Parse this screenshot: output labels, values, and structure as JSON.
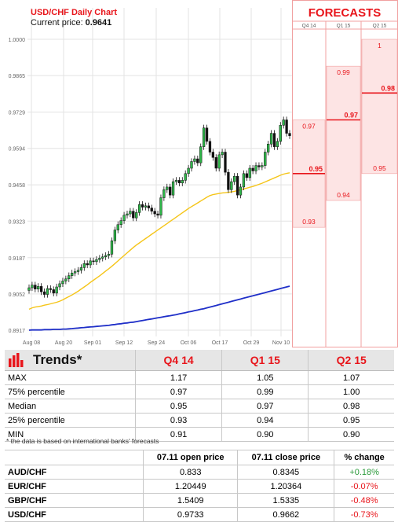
{
  "chart_data": {
    "type": "line",
    "title": "USD/CHF Daily Chart",
    "current_price_label": "Current price:",
    "current_price": "0.9641",
    "x_tick_labels": [
      "Aug 08",
      "Aug 20",
      "Sep 01",
      "Sep 12",
      "Sep 24",
      "Oct 06",
      "Oct 17",
      "Oct 29",
      "Nov 10"
    ],
    "y_ticks": [
      0.8917,
      0.9052,
      0.9187,
      0.9323,
      0.9458,
      0.9594,
      0.9729,
      0.9865,
      1.0
    ],
    "y_tick_labels": [
      "0.8917",
      "0.9052",
      "0.9187",
      "0.9323",
      "0.9458",
      "0.9594",
      "0.9729",
      "0.9865",
      "1.0000"
    ],
    "ylim": [
      0.8917,
      1.0
    ],
    "grid": true,
    "series": [
      {
        "values_close": [
          0.9075,
          0.9085,
          0.907,
          0.908,
          0.906,
          0.905,
          0.9072,
          0.9068,
          0.9055,
          0.9078,
          0.909,
          0.91,
          0.9108,
          0.912,
          0.913,
          0.9135,
          0.914,
          0.915,
          0.9165,
          0.916,
          0.9175,
          0.9172,
          0.918,
          0.9185,
          0.919,
          0.9195,
          0.92,
          0.925,
          0.929,
          0.931,
          0.9325,
          0.9345,
          0.935,
          0.936,
          0.9335,
          0.9355,
          0.9385,
          0.9375,
          0.938,
          0.9372,
          0.936,
          0.935,
          0.9345,
          0.941,
          0.944,
          0.945,
          0.942,
          0.947,
          0.9475,
          0.9465,
          0.9475,
          0.95,
          0.952,
          0.9545,
          0.9555,
          0.954,
          0.96,
          0.967,
          0.962,
          0.958,
          0.956,
          0.952,
          0.957,
          0.958,
          0.9505,
          0.944,
          0.947,
          0.949,
          0.942,
          0.945,
          0.95,
          0.9485,
          0.952,
          0.951,
          0.953,
          0.9525,
          0.953,
          0.958,
          0.961,
          0.965,
          0.96,
          0.962,
          0.968,
          0.97,
          0.965,
          0.9641
        ],
        "color": "#111111"
      },
      {
        "name": "",
        "values": [
          0.8995,
          0.9,
          0.9003,
          0.9005,
          0.9007,
          0.901,
          0.9012,
          0.9015,
          0.9018,
          0.9021,
          0.9025,
          0.903,
          0.9036,
          0.9042,
          0.9048,
          0.9055,
          0.9062,
          0.907,
          0.9078,
          0.9086,
          0.9095,
          0.9103,
          0.9111,
          0.9119,
          0.9128,
          0.9137,
          0.9146,
          0.9155,
          0.9165,
          0.9175,
          0.9185,
          0.9195,
          0.9205,
          0.9215,
          0.9225,
          0.9234,
          0.9242,
          0.925,
          0.9258,
          0.9266,
          0.9274,
          0.9282,
          0.929,
          0.9298,
          0.9306,
          0.9314,
          0.9322,
          0.933,
          0.9338,
          0.9346,
          0.9354,
          0.9362,
          0.937,
          0.9377,
          0.9384,
          0.9391,
          0.9398,
          0.9405,
          0.9412,
          0.9418,
          0.9422,
          0.9424,
          0.9426,
          0.9428,
          0.9429,
          0.943,
          0.9432,
          0.9434,
          0.9437,
          0.944,
          0.9443,
          0.9446,
          0.9449,
          0.9452,
          0.9456,
          0.946,
          0.9464,
          0.9469,
          0.9474,
          0.9479,
          0.9484,
          0.9489,
          0.9494,
          0.9498,
          0.9501,
          0.9503
        ],
        "color": "#f5c518"
      },
      {
        "name": "",
        "values": [
          0.8917,
          0.8918,
          0.8918,
          0.8918,
          0.8918,
          0.8919,
          0.8919,
          0.8919,
          0.892,
          0.892,
          0.892,
          0.8921,
          0.8921,
          0.8922,
          0.8923,
          0.8924,
          0.8925,
          0.8926,
          0.8927,
          0.8928,
          0.8929,
          0.893,
          0.8931,
          0.8932,
          0.8933,
          0.8934,
          0.8935,
          0.8937,
          0.8938,
          0.894,
          0.8941,
          0.8943,
          0.8944,
          0.8946,
          0.8947,
          0.8949,
          0.8951,
          0.8953,
          0.8955,
          0.8957,
          0.8959,
          0.8961,
          0.8963,
          0.8965,
          0.8967,
          0.8969,
          0.8971,
          0.8973,
          0.8975,
          0.8978,
          0.898,
          0.8982,
          0.8985,
          0.8987,
          0.899,
          0.8992,
          0.8995,
          0.8997,
          0.9,
          0.9003,
          0.9006,
          0.9009,
          0.9012,
          0.9015,
          0.9018,
          0.9021,
          0.9024,
          0.9027,
          0.903,
          0.9033,
          0.9036,
          0.9039,
          0.9042,
          0.9045,
          0.9048,
          0.9051,
          0.9054,
          0.9057,
          0.906,
          0.9063,
          0.9066,
          0.9069,
          0.9072,
          0.9075,
          0.9078,
          0.9081
        ],
        "color": "#1f2fc8"
      }
    ]
  },
  "forecasts": {
    "title": "FORECASTS",
    "columns": [
      "Q4 14",
      "Q1 15",
      "Q2 15"
    ],
    "values": [
      {
        "max": "0.97",
        "median": "0.95",
        "min": "0.93",
        "max_v": 0.97,
        "median_v": 0.95,
        "min_v": 0.93
      },
      {
        "max": "0.99",
        "median": "0.97",
        "min": "0.94",
        "max_v": 0.99,
        "median_v": 0.97,
        "min_v": 0.94
      },
      {
        "max": "1",
        "median": "0.98",
        "min": "0.95",
        "max_v": 1.0,
        "median_v": 0.98,
        "min_v": 0.95
      }
    ],
    "colors": {
      "accent": "#e8151b",
      "band": "#fde4e4"
    }
  },
  "trends": {
    "title": "Trends*",
    "columns": [
      "Q4 14",
      "Q1 15",
      "Q2 15"
    ],
    "rows": [
      {
        "label": "MAX",
        "v": [
          "1.17",
          "1.05",
          "1.07"
        ]
      },
      {
        "label": "75% percentile",
        "v": [
          "0.97",
          "0.99",
          "1.00"
        ]
      },
      {
        "label": "Median",
        "v": [
          "0.95",
          "0.97",
          "0.98"
        ]
      },
      {
        "label": "25% percentile",
        "v": [
          "0.93",
          "0.94",
          "0.95"
        ]
      },
      {
        "label": "MIN",
        "v": [
          "0.91",
          "0.90",
          "0.90"
        ]
      }
    ],
    "footnote": "* the data is based on international banks' forecasts"
  },
  "pairs": {
    "headers": [
      "",
      "07.11 open price",
      "07.11 close price",
      "% change"
    ],
    "rows": [
      {
        "pair": "AUD/CHF",
        "open": "0.833",
        "close": "0.8345",
        "change": "+0.18%",
        "positive": true
      },
      {
        "pair": "EUR/CHF",
        "open": "1.20449",
        "close": "1.20364",
        "change": "-0.07%",
        "positive": false
      },
      {
        "pair": "GBP/CHF",
        "open": "1.5409",
        "close": "1.5335",
        "change": "-0.48%",
        "positive": false
      },
      {
        "pair": "USD/CHF",
        "open": "0.9733",
        "close": "0.9662",
        "change": "-0.73%",
        "positive": false
      }
    ]
  }
}
